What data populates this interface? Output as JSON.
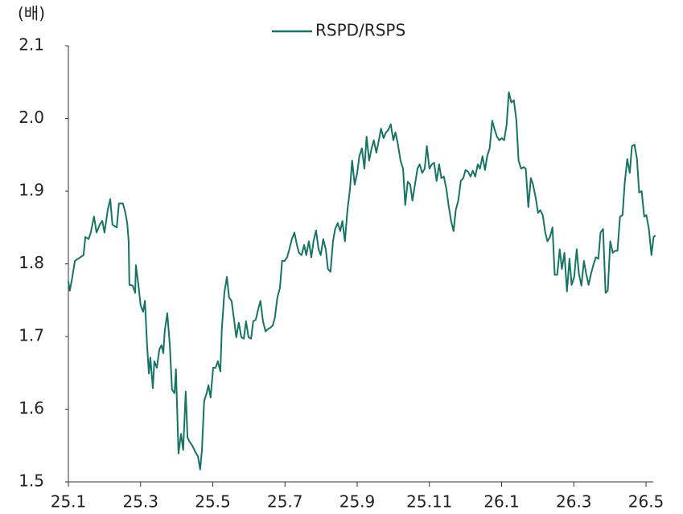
{
  "chart_data": {
    "type": "line",
    "y_label": "(배)",
    "series": [
      {
        "name": "RSPD/RSPS",
        "color": "#167465",
        "x": [
          0,
          0.04,
          0.11,
          0.18,
          0.27,
          0.42,
          0.47,
          0.56,
          0.62,
          0.71,
          0.78,
          0.87,
          0.94,
          1.0,
          1.09,
          1.16,
          1.22,
          1.34,
          1.4,
          1.51,
          1.58,
          1.63,
          1.67,
          1.69,
          1.78,
          1.85,
          1.87,
          1.94,
          2.0,
          2.07,
          2.12,
          2.18,
          2.23,
          2.27,
          2.34,
          2.38,
          2.45,
          2.52,
          2.58,
          2.63,
          2.67,
          2.74,
          2.81,
          2.87,
          2.94,
          2.98,
          3.05,
          3.12,
          3.18,
          3.25,
          3.3,
          3.36,
          3.43,
          3.52,
          3.59,
          3.65,
          3.7,
          3.76,
          3.83,
          3.88,
          3.94,
          4.01,
          4.08,
          4.14,
          4.21,
          4.25,
          4.32,
          4.39,
          4.45,
          4.52,
          4.59,
          4.65,
          4.72,
          4.79,
          4.86,
          4.92,
          4.99,
          5.06,
          5.12,
          5.19,
          5.26,
          5.32,
          5.39,
          5.46,
          5.52,
          5.59,
          5.66,
          5.72,
          5.79,
          5.86,
          5.92,
          5.99,
          6.06,
          6.12,
          6.19,
          6.26,
          6.33,
          6.39,
          6.46,
          6.53,
          6.59,
          6.66,
          6.73,
          6.79,
          6.86,
          6.93,
          6.99,
          7.06,
          7.13,
          7.19,
          7.26,
          7.33,
          7.39,
          7.46,
          7.53,
          7.59,
          7.66,
          7.73,
          7.8,
          7.86,
          7.93,
          8.0,
          8.06,
          8.13,
          8.2,
          8.26,
          8.33,
          8.4,
          8.46,
          8.53,
          8.6,
          8.66,
          8.73,
          8.8,
          8.86,
          8.93,
          9.0,
          9.06,
          9.13,
          9.2,
          9.27,
          9.33,
          9.4,
          9.47,
          9.53,
          9.6,
          9.67,
          9.73,
          9.8,
          9.87,
          9.93,
          10.0,
          10.07,
          10.13,
          10.2,
          10.27,
          10.33,
          10.4,
          10.47,
          10.53,
          10.6,
          10.67,
          10.73,
          10.8,
          10.87,
          10.94,
          11.0,
          11.07,
          11.14,
          11.2,
          11.27,
          11.34,
          11.4,
          11.47,
          11.54,
          11.6,
          11.67,
          11.74,
          11.8,
          11.87,
          11.94,
          12.0,
          12.07,
          12.14,
          12.2,
          12.27,
          12.34,
          12.41,
          12.47,
          12.54,
          12.61,
          12.67,
          12.74,
          12.81,
          12.87,
          12.94,
          13.01,
          13.07,
          13.14,
          13.21,
          13.27,
          13.34,
          13.41,
          13.47,
          13.54,
          13.61,
          13.67,
          13.74,
          13.81,
          13.88,
          13.94,
          14.01,
          14.08,
          14.14,
          14.21,
          14.28,
          14.34,
          14.41,
          14.48,
          14.54,
          14.61,
          14.68,
          14.74,
          14.81,
          14.88,
          14.94,
          15.01,
          15.08,
          15.14,
          15.21,
          15.28,
          15.35,
          15.41,
          15.48,
          15.55,
          15.61,
          15.68,
          15.75,
          15.81,
          15.88,
          15.95,
          16.01,
          16.08,
          16.15,
          16.21,
          16.26
        ],
        "values": [
          1.776,
          1.763,
          1.782,
          1.804,
          1.807,
          1.812,
          1.837,
          1.834,
          1.843,
          1.865,
          1.843,
          1.854,
          1.859,
          1.843,
          1.874,
          1.889,
          1.854,
          1.85,
          1.883,
          1.883,
          1.87,
          1.856,
          1.831,
          1.771,
          1.77,
          1.76,
          1.798,
          1.771,
          1.743,
          1.734,
          1.749,
          1.688,
          1.649,
          1.671,
          1.629,
          1.666,
          1.657,
          1.682,
          1.688,
          1.677,
          1.708,
          1.732,
          1.688,
          1.627,
          1.622,
          1.655,
          1.539,
          1.566,
          1.544,
          1.624,
          1.561,
          1.555,
          1.55,
          1.541,
          1.535,
          1.517,
          1.544,
          1.611,
          1.622,
          1.633,
          1.616,
          1.657,
          1.657,
          1.666,
          1.652,
          1.71,
          1.76,
          1.782,
          1.754,
          1.749,
          1.723,
          1.699,
          1.719,
          1.699,
          1.697,
          1.721,
          1.699,
          1.697,
          1.721,
          1.723,
          1.738,
          1.749,
          1.721,
          1.707,
          1.71,
          1.712,
          1.715,
          1.726,
          1.754,
          1.767,
          1.804,
          1.804,
          1.809,
          1.82,
          1.834,
          1.843,
          1.826,
          1.815,
          1.812,
          1.826,
          1.812,
          1.831,
          1.809,
          1.831,
          1.846,
          1.82,
          1.812,
          1.834,
          1.82,
          1.793,
          1.789,
          1.831,
          1.848,
          1.856,
          1.845,
          1.859,
          1.831,
          1.874,
          1.903,
          1.942,
          1.909,
          1.925,
          1.948,
          1.959,
          1.931,
          1.975,
          1.942,
          1.959,
          1.97,
          1.953,
          1.97,
          1.986,
          1.973,
          1.981,
          1.984,
          1.992,
          1.97,
          1.981,
          1.964,
          1.942,
          1.931,
          1.881,
          1.913,
          1.909,
          1.887,
          1.909,
          1.931,
          1.937,
          1.925,
          1.931,
          1.962,
          1.931,
          1.937,
          1.939,
          1.914,
          1.937,
          1.918,
          1.92,
          1.903,
          1.881,
          1.859,
          1.845,
          1.874,
          1.887,
          1.914,
          1.918,
          1.929,
          1.927,
          1.92,
          1.928,
          1.92,
          1.937,
          1.931,
          1.948,
          1.929,
          1.948,
          1.959,
          1.997,
          1.986,
          1.975,
          1.97,
          1.973,
          1.97,
          1.992,
          2.036,
          2.022,
          2.025,
          1.997,
          1.942,
          1.931,
          1.933,
          1.931,
          1.878,
          1.918,
          1.909,
          1.892,
          1.87,
          1.874,
          1.867,
          1.843,
          1.831,
          1.837,
          1.85,
          1.785,
          1.785,
          1.82,
          1.793,
          1.815,
          1.762,
          1.807,
          1.771,
          1.782,
          1.82,
          1.787,
          1.77,
          1.804,
          1.787,
          1.771,
          1.787,
          1.798,
          1.809,
          1.807,
          1.843,
          1.848,
          1.76,
          1.763,
          1.831,
          1.815,
          1.818,
          1.818,
          1.865,
          1.867,
          1.911,
          1.944,
          1.925,
          1.962,
          1.964,
          1.944,
          1.898,
          1.9,
          1.865,
          1.867,
          1.848,
          1.812,
          1.837,
          1.839
        ]
      }
    ],
    "xlim": [
      0,
      16.2
    ],
    "xticks": [
      {
        "value": 0,
        "label": "25.1"
      },
      {
        "value": 2,
        "label": "25.3"
      },
      {
        "value": 4,
        "label": "25.5"
      },
      {
        "value": 6,
        "label": "25.7"
      },
      {
        "value": 8,
        "label": "25.9"
      },
      {
        "value": 10,
        "label": "25.11"
      },
      {
        "value": 12,
        "label": "26.1"
      },
      {
        "value": 14,
        "label": "26.3"
      },
      {
        "value": 16,
        "label": "26.5"
      }
    ],
    "ylim": [
      1.5,
      2.1
    ],
    "yticks": [
      {
        "value": 1.5,
        "label": "1.5"
      },
      {
        "value": 1.6,
        "label": "1.6"
      },
      {
        "value": 1.7,
        "label": "1.7"
      },
      {
        "value": 1.8,
        "label": "1.8"
      },
      {
        "value": 1.9,
        "label": "1.9"
      },
      {
        "value": 2,
        "label": "2.0"
      },
      {
        "value": 2.1,
        "label": "2.1"
      }
    ],
    "grid": false,
    "legend": "top"
  }
}
